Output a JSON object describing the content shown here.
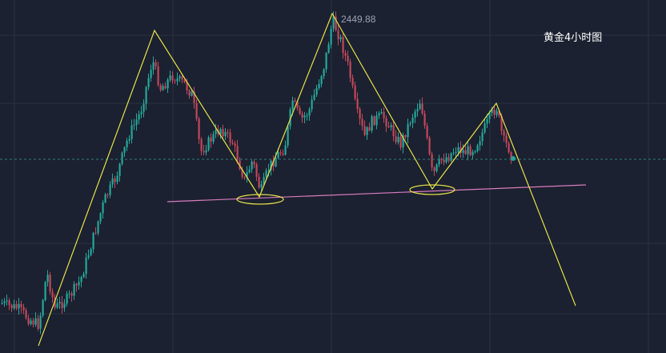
{
  "chart_data": {
    "type": "candlestick",
    "title": "黄金4小时图",
    "annotations": [
      {
        "kind": "price-label",
        "text": "2449.88"
      }
    ],
    "grid": true,
    "colors": {
      "background": "#1b2130",
      "grid": "#2a3242",
      "up": "#26a69a",
      "down": "#c2475a",
      "trendline": "#e6e04a",
      "neckline": "#d97bc0",
      "price_line": "#2f7f7a"
    },
    "drawings": [
      {
        "name": "zigzag-pattern",
        "type": "polyline",
        "color": "yellow"
      },
      {
        "name": "neckline",
        "type": "line",
        "color": "pink"
      },
      {
        "name": "support-ellipse-left",
        "type": "ellipse",
        "color": "yellow"
      },
      {
        "name": "support-ellipse-right",
        "type": "ellipse",
        "color": "yellow"
      }
    ]
  }
}
